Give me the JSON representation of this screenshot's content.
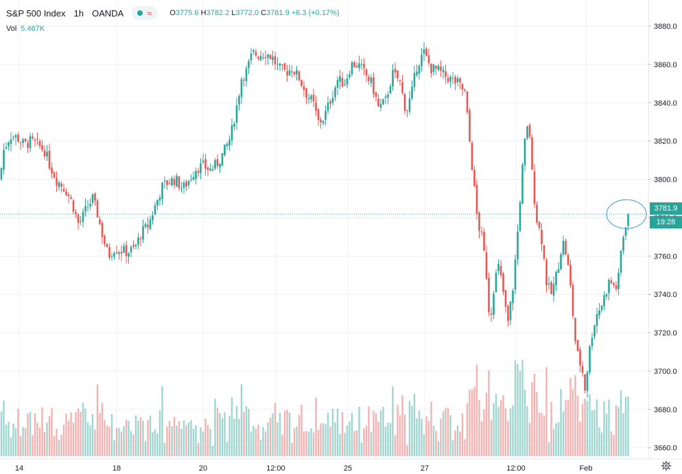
{
  "header": {
    "symbol": "S&P 500 Index",
    "interval": "1h",
    "source": "OANDA",
    "approx_symbol": "≈",
    "ohlc": {
      "o_label": "O",
      "o": "3775.6",
      "h_label": "H",
      "h": "3782.2",
      "l_label": "L",
      "l": "3772.0",
      "c_label": "C",
      "c": "3781.9",
      "change": "+6.3 (+0.17%)"
    },
    "vol_label": "Vol",
    "vol_value": "5.467K"
  },
  "price_labels": {
    "last": "3781.9",
    "countdown": "19:28"
  },
  "colors": {
    "up": "#26a69a",
    "down": "#ef5350",
    "up_vol": "#9fd5cf",
    "down_vol": "#f2b2b1",
    "grid": "#eceff3",
    "text": "#131722",
    "highlight": "#3b9ad9"
  },
  "icons": {
    "status_dot": "circle-dot-icon",
    "settings": "gear-icon",
    "highlight_marker": "ellipse-highlight-icon"
  },
  "chart_data": {
    "type": "candlestick",
    "x_ticks": [
      "14",
      "18",
      "20",
      "12:00",
      "25",
      "27",
      "12:00",
      "Feb"
    ],
    "y_ticks": [
      "3880.0",
      "3860.0",
      "3840.0",
      "3820.0",
      "3800.0",
      "3780.0",
      "3760.0",
      "3740.0",
      "3720.0",
      "3700.0",
      "3680.0",
      "3660.0"
    ],
    "ylim": [
      3647,
      3894
    ],
    "last_price": 3781.9,
    "grid": true,
    "anchors": [
      [
        0,
        3800
      ],
      [
        5,
        3815
      ],
      [
        15,
        3823
      ],
      [
        25,
        3822
      ],
      [
        35,
        3818
      ],
      [
        45,
        3820
      ],
      [
        55,
        3818
      ],
      [
        65,
        3815
      ],
      [
        72,
        3808
      ],
      [
        82,
        3800
      ],
      [
        95,
        3795
      ],
      [
        105,
        3788
      ],
      [
        115,
        3776
      ],
      [
        125,
        3784
      ],
      [
        135,
        3790
      ],
      [
        142,
        3782
      ],
      [
        150,
        3770
      ],
      [
        158,
        3760
      ],
      [
        166,
        3764
      ],
      [
        176,
        3763
      ],
      [
        186,
        3762
      ],
      [
        196,
        3764
      ],
      [
        206,
        3772
      ],
      [
        216,
        3776
      ],
      [
        226,
        3786
      ],
      [
        236,
        3796
      ],
      [
        246,
        3799
      ],
      [
        256,
        3800
      ],
      [
        266,
        3795
      ],
      [
        276,
        3800
      ],
      [
        286,
        3806
      ],
      [
        296,
        3807
      ],
      [
        306,
        3805
      ],
      [
        316,
        3808
      ],
      [
        326,
        3814
      ],
      [
        336,
        3822
      ],
      [
        346,
        3840
      ],
      [
        352,
        3853
      ],
      [
        360,
        3857
      ],
      [
        368,
        3866
      ],
      [
        376,
        3865
      ],
      [
        386,
        3866
      ],
      [
        396,
        3864
      ],
      [
        406,
        3858
      ],
      [
        416,
        3856
      ],
      [
        426,
        3858
      ],
      [
        436,
        3853
      ],
      [
        446,
        3845
      ],
      [
        456,
        3840
      ],
      [
        464,
        3830
      ],
      [
        472,
        3832
      ],
      [
        482,
        3842
      ],
      [
        492,
        3852
      ],
      [
        502,
        3850
      ],
      [
        512,
        3860
      ],
      [
        522,
        3860
      ],
      [
        532,
        3855
      ],
      [
        542,
        3850
      ],
      [
        552,
        3837
      ],
      [
        562,
        3841
      ],
      [
        572,
        3855
      ],
      [
        582,
        3852
      ],
      [
        592,
        3835
      ],
      [
        600,
        3845
      ],
      [
        608,
        3860
      ],
      [
        618,
        3866
      ],
      [
        628,
        3858
      ],
      [
        638,
        3857
      ],
      [
        648,
        3854
      ],
      [
        658,
        3852
      ],
      [
        668,
        3850
      ],
      [
        678,
        3845
      ],
      [
        683,
        3825
      ],
      [
        690,
        3800
      ],
      [
        696,
        3778
      ],
      [
        702,
        3770
      ],
      [
        708,
        3755
      ],
      [
        714,
        3725
      ],
      [
        720,
        3745
      ],
      [
        726,
        3755
      ],
      [
        732,
        3745
      ],
      [
        740,
        3724
      ],
      [
        748,
        3745
      ],
      [
        754,
        3770
      ],
      [
        760,
        3800
      ],
      [
        766,
        3823
      ],
      [
        771,
        3829
      ],
      [
        776,
        3800
      ],
      [
        782,
        3780
      ],
      [
        790,
        3768
      ],
      [
        797,
        3745
      ],
      [
        804,
        3740
      ],
      [
        812,
        3752
      ],
      [
        820,
        3768
      ],
      [
        826,
        3760
      ],
      [
        832,
        3742
      ],
      [
        838,
        3717
      ],
      [
        843,
        3706
      ],
      [
        848,
        3702
      ],
      [
        853,
        3690
      ],
      [
        858,
        3708
      ],
      [
        864,
        3722
      ],
      [
        870,
        3730
      ],
      [
        876,
        3734
      ],
      [
        882,
        3740
      ],
      [
        888,
        3747
      ],
      [
        894,
        3745
      ],
      [
        900,
        3743
      ],
      [
        906,
        3766
      ],
      [
        912,
        3777
      ],
      [
        914,
        3781.9
      ]
    ],
    "volume_ylim": [
      0,
      8000
    ]
  }
}
